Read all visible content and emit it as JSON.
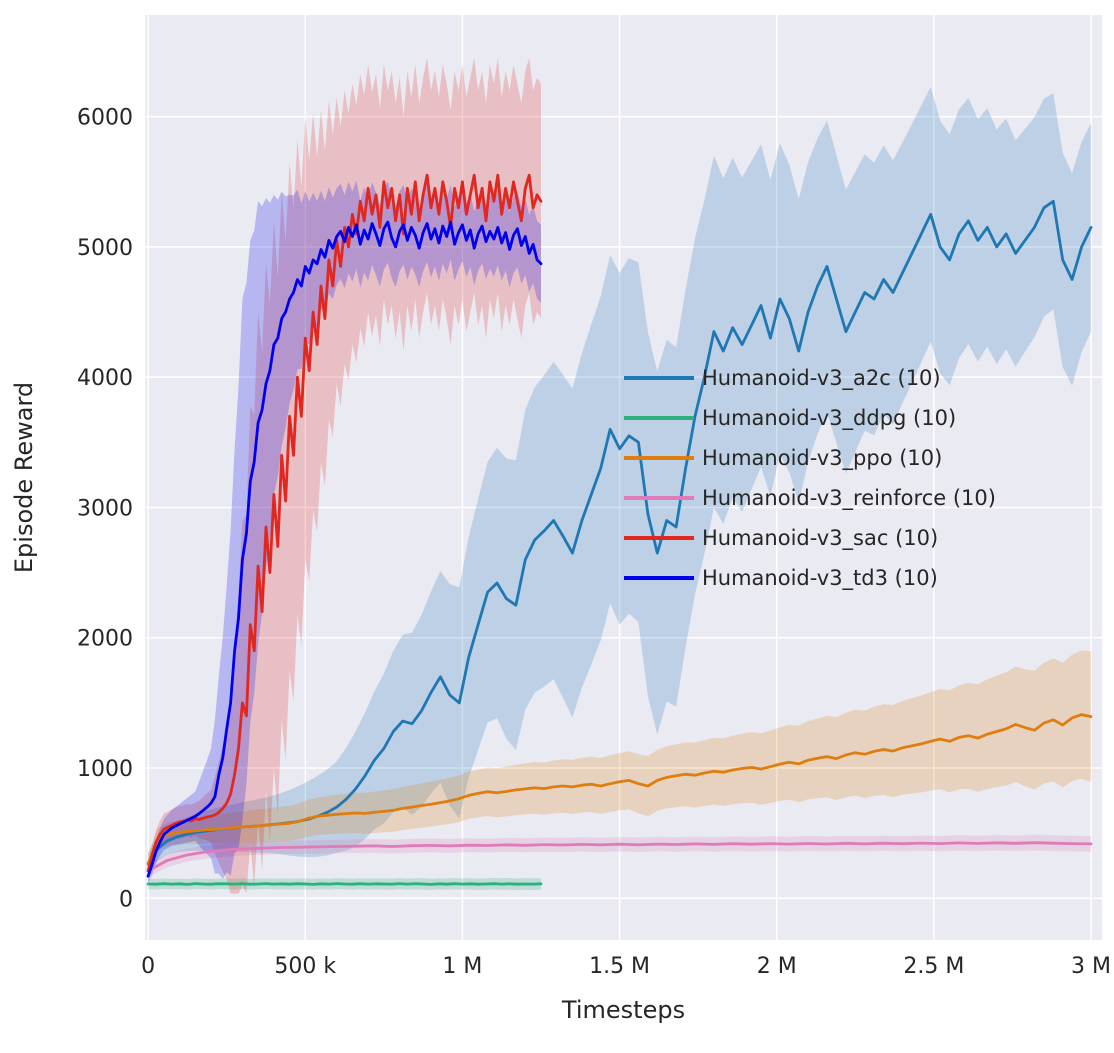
{
  "figure": {
    "bg": "#ffffff",
    "plot_bg": "#eaeaf2",
    "grid_color": "#ffffff",
    "text_color": "#262626"
  },
  "chart_data": {
    "type": "line",
    "title": "",
    "xlabel": "Timesteps",
    "ylabel": "Episode Reward",
    "xlim": [
      -10000,
      3035000
    ],
    "ylim": [
      -320,
      6780
    ],
    "grid": true,
    "band_alpha": 0.22,
    "legend_position": "center-right",
    "x_ticks": [
      {
        "v": 0,
        "label": "0"
      },
      {
        "v": 500000,
        "label": "500 k"
      },
      {
        "v": 1000000,
        "label": "1 M"
      },
      {
        "v": 1500000,
        "label": "1.5 M"
      },
      {
        "v": 2000000,
        "label": "2 M"
      },
      {
        "v": 2500000,
        "label": "2.5 M"
      },
      {
        "v": 3000000,
        "label": "3 M"
      }
    ],
    "y_ticks": [
      {
        "v": 0,
        "label": "0"
      },
      {
        "v": 1000,
        "label": "1000"
      },
      {
        "v": 2000,
        "label": "2000"
      },
      {
        "v": 3000,
        "label": "3000"
      },
      {
        "v": 4000,
        "label": "4000"
      },
      {
        "v": 5000,
        "label": "5000"
      },
      {
        "v": 6000,
        "label": "6000"
      }
    ],
    "series": [
      {
        "name": "a2c",
        "label": "Humanoid-v3_a2c (10)",
        "color": "#1f77b4",
        "x0": 0,
        "dx": 30000,
        "y": [
          270,
          380,
          440,
          470,
          490,
          505,
          515,
          525,
          535,
          540,
          548,
          552,
          558,
          565,
          572,
          580,
          592,
          608,
          630,
          660,
          700,
          760,
          840,
          940,
          1060,
          1150,
          1280,
          1360,
          1340,
          1440,
          1580,
          1700,
          1560,
          1500,
          1850,
          2100,
          2350,
          2420,
          2300,
          2250,
          2600,
          2750,
          2820,
          2900,
          2780,
          2650,
          2900,
          3100,
          3300,
          3600,
          3450,
          3550,
          3500,
          2950,
          2650,
          2900,
          2850,
          3300,
          3700,
          4000,
          4350,
          4200,
          4380,
          4250,
          4400,
          4550,
          4300,
          4600,
          4450,
          4200,
          4500,
          4700,
          4850,
          4600,
          4350,
          4500,
          4650,
          4600,
          4750,
          4650,
          4800,
          4950,
          5100,
          5250,
          5000,
          4900,
          5100,
          5200,
          5050,
          5150,
          5000,
          5100,
          4950,
          5050,
          5150,
          5300,
          5350,
          4900,
          4750,
          5000,
          5150
        ],
        "spread_pts": [
          [
            0,
            80
          ],
          [
            200000,
            160
          ],
          [
            400000,
            220
          ],
          [
            600000,
            350
          ],
          [
            800000,
            650
          ],
          [
            1000000,
            900
          ],
          [
            1200000,
            1150
          ],
          [
            1400000,
            1300
          ],
          [
            1600000,
            1400
          ],
          [
            1800000,
            1350
          ],
          [
            2000000,
            1200
          ],
          [
            2200000,
            1100
          ],
          [
            2400000,
            1000
          ],
          [
            2600000,
            950
          ],
          [
            2800000,
            850
          ],
          [
            3000000,
            800
          ]
        ]
      },
      {
        "name": "ddpg",
        "label": "Humanoid-v3_ddpg (10)",
        "color": "#2bb179",
        "x0": 0,
        "dx": 25000,
        "y": [
          110,
          108,
          112,
          109,
          111,
          107,
          113,
          110,
          108,
          112,
          111,
          109,
          112,
          108,
          110,
          113,
          109,
          111,
          108,
          112,
          110,
          107,
          111,
          109,
          113,
          110,
          108,
          112,
          109,
          111,
          110,
          108,
          113,
          109,
          112,
          110,
          107,
          111,
          108,
          112,
          109,
          111,
          108,
          110,
          112,
          109,
          111,
          108,
          110,
          109,
          111
        ],
        "spread_pts": [
          [
            0,
            40
          ],
          [
            1250000,
            45
          ]
        ]
      },
      {
        "name": "ppo",
        "label": "Humanoid-v3_ppo (10)",
        "color": "#de7e0e",
        "x0": 0,
        "dx": 30000,
        "y": [
          260,
          455,
          490,
          505,
          512,
          518,
          525,
          530,
          536,
          542,
          548,
          553,
          558,
          564,
          570,
          576,
          590,
          615,
          630,
          638,
          645,
          650,
          655,
          652,
          660,
          668,
          675,
          690,
          700,
          712,
          722,
          735,
          748,
          765,
          790,
          805,
          818,
          810,
          820,
          832,
          840,
          848,
          842,
          855,
          862,
          855,
          868,
          875,
          862,
          880,
          895,
          905,
          880,
          862,
          905,
          928,
          940,
          952,
          945,
          962,
          975,
          968,
          985,
          996,
          1005,
          992,
          1010,
          1030,
          1045,
          1032,
          1060,
          1075,
          1088,
          1072,
          1100,
          1118,
          1105,
          1128,
          1142,
          1130,
          1155,
          1170,
          1185,
          1205,
          1222,
          1205,
          1235,
          1248,
          1230,
          1260,
          1280,
          1300,
          1335,
          1310,
          1290,
          1345,
          1370,
          1330,
          1385,
          1410,
          1395
        ],
        "spread_pts": [
          [
            0,
            80
          ],
          [
            300000,
            120
          ],
          [
            600000,
            150
          ],
          [
            1000000,
            180
          ],
          [
            1500000,
            220
          ],
          [
            2000000,
            280
          ],
          [
            2500000,
            380
          ],
          [
            3000000,
            500
          ]
        ]
      },
      {
        "name": "reinforce",
        "label": "Humanoid-v3_reinforce (10)",
        "color": "#dd7cb8",
        "x0": 0,
        "dx": 60000,
        "y": [
          210,
          290,
          330,
          355,
          370,
          380,
          385,
          390,
          392,
          395,
          398,
          400,
          402,
          398,
          404,
          406,
          402,
          408,
          405,
          410,
          407,
          412,
          409,
          414,
          410,
          415,
          411,
          416,
          413,
          418,
          414,
          419,
          415,
          420,
          416,
          421,
          417,
          422,
          418,
          423,
          419,
          424,
          420,
          425,
          421,
          426,
          422,
          427,
          423,
          420,
          418
        ],
        "spread_pts": [
          [
            0,
            50
          ],
          [
            3000000,
            60
          ]
        ]
      },
      {
        "name": "sac",
        "label": "Humanoid-v3_sac (10)",
        "color": "#e02820",
        "x0": 0,
        "dx": 12500,
        "y": [
          210,
          330,
          430,
          490,
          530,
          545,
          560,
          575,
          585,
          590,
          600,
          595,
          610,
          605,
          615,
          625,
          630,
          640,
          660,
          690,
          730,
          800,
          950,
          1150,
          1500,
          1400,
          2100,
          1900,
          2550,
          2200,
          2850,
          2500,
          3100,
          2700,
          3400,
          3050,
          3700,
          3400,
          4000,
          3700,
          4300,
          4050,
          4500,
          4250,
          4700,
          4450,
          4900,
          4700,
          5050,
          4850,
          5150,
          5000,
          5250,
          5100,
          5350,
          5200,
          5450,
          5250,
          5400,
          5150,
          5500,
          5300,
          5450,
          5200,
          5400,
          5100,
          5450,
          5250,
          5500,
          5200,
          5400,
          5550,
          5300,
          5450,
          5250,
          5500,
          5350,
          5150,
          5450,
          5300,
          5500,
          5250,
          5400,
          5550,
          5300,
          5450,
          5200,
          5500,
          5350,
          5550,
          5250,
          5450,
          5300,
          5500,
          5350,
          5200,
          5450,
          5550,
          5300,
          5400,
          5350
        ],
        "spread_pts": [
          [
            0,
            60
          ],
          [
            50000,
            120
          ],
          [
            150000,
            125
          ],
          [
            200000,
            200
          ],
          [
            250000,
            580
          ],
          [
            300000,
            1400
          ],
          [
            350000,
            1950
          ],
          [
            400000,
            2100
          ],
          [
            450000,
            1950
          ],
          [
            500000,
            1700
          ],
          [
            550000,
            1350
          ],
          [
            600000,
            1100
          ],
          [
            650000,
            1000
          ],
          [
            700000,
            950
          ],
          [
            750000,
            900
          ],
          [
            1250000,
            900
          ]
        ]
      },
      {
        "name": "td3",
        "label": "Humanoid-v3_td3 (10)",
        "color": "#0000ee",
        "x0": 0,
        "dx": 12500,
        "y": [
          170,
          260,
          360,
          430,
          490,
          515,
          540,
          555,
          570,
          585,
          600,
          615,
          630,
          650,
          675,
          700,
          730,
          780,
          950,
          1080,
          1300,
          1500,
          1900,
          2150,
          2600,
          2800,
          3200,
          3350,
          3650,
          3750,
          3950,
          4050,
          4250,
          4300,
          4450,
          4500,
          4600,
          4650,
          4750,
          4700,
          4850,
          4800,
          4900,
          4870,
          4980,
          4920,
          5050,
          4990,
          5080,
          5120,
          5040,
          5150,
          5080,
          5170,
          5020,
          5130,
          5060,
          5180,
          5100,
          5010,
          5140,
          5190,
          5070,
          5000,
          5120,
          5170,
          5050,
          5150,
          5090,
          4990,
          5110,
          5180,
          5060,
          5140,
          5030,
          5160,
          5080,
          5190,
          5020,
          5110,
          5170,
          5050,
          5130,
          4990,
          5100,
          5160,
          5040,
          5120,
          5060,
          5150,
          5030,
          5110,
          4980,
          5090,
          5140,
          5010,
          5080,
          4950,
          5020,
          4900,
          4870
        ],
        "spread_pts": [
          [
            0,
            60
          ],
          [
            50000,
            120
          ],
          [
            150000,
            190
          ],
          [
            200000,
            420
          ],
          [
            250000,
            1100
          ],
          [
            300000,
            2000
          ],
          [
            350000,
            1700
          ],
          [
            400000,
            1150
          ],
          [
            450000,
            800
          ],
          [
            500000,
            580
          ],
          [
            550000,
            450
          ],
          [
            600000,
            370
          ],
          [
            700000,
            320
          ],
          [
            1000000,
            280
          ],
          [
            1250000,
            300
          ]
        ]
      }
    ]
  }
}
